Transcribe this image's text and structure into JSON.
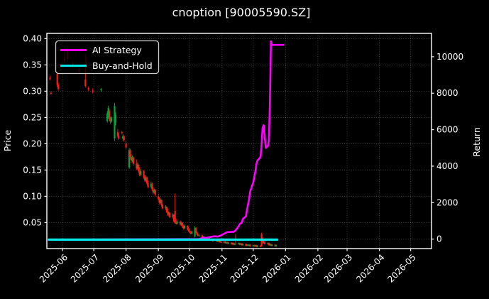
{
  "title": "cnoption [90005590.SZ]",
  "colors": {
    "background": "#000000",
    "text": "#ffffff",
    "ai_strategy": "#ff00ff",
    "buy_and_hold": "#00e6e6",
    "candle_up": "#00a839",
    "candle_down": "#ff1a1a",
    "grid": "#8a8a8a"
  },
  "legend": {
    "items": [
      {
        "label": "AI Strategy",
        "color": "#ff00ff"
      },
      {
        "label": "Buy-and-Hold",
        "color": "#00e6e6"
      }
    ]
  },
  "axes": {
    "price": {
      "label": "Price",
      "ticks": [
        "0.40",
        "0.35",
        "0.30",
        "0.25",
        "0.20",
        "0.15",
        "0.10",
        "0.05"
      ],
      "tick_values": [
        0.4,
        0.35,
        0.3,
        0.25,
        0.2,
        0.15,
        0.1,
        0.05
      ],
      "range": [
        0.0005,
        0.41
      ]
    },
    "return": {
      "label": "Return",
      "ticks": [
        "10000",
        "8000",
        "6000",
        "4000",
        "2000",
        "0"
      ],
      "tick_values": [
        10000,
        8000,
        6000,
        4000,
        2000,
        0
      ],
      "range": [
        -520,
        11280
      ]
    },
    "x": {
      "ticks": [
        {
          "label": "2025-06",
          "date": "2025-06-01"
        },
        {
          "label": "2025-07",
          "date": "2025-07-01"
        },
        {
          "label": "2025-08",
          "date": "2025-08-01"
        },
        {
          "label": "2025-09",
          "date": "2025-09-01"
        },
        {
          "label": "2025-10",
          "date": "2025-10-01"
        },
        {
          "label": "2025-11",
          "date": "2025-11-01"
        },
        {
          "label": "2025-12",
          "date": "2025-12-01"
        },
        {
          "label": "2026-01",
          "date": "2026-01-01"
        },
        {
          "label": "2026-02",
          "date": "2026-02-01"
        },
        {
          "label": "2026-03",
          "date": "2026-03-01"
        },
        {
          "label": "2026-04",
          "date": "2026-04-01"
        },
        {
          "label": "2026-05",
          "date": "2026-05-01"
        }
      ],
      "range": [
        "2025-05-17",
        "2026-05-21"
      ]
    }
  },
  "chart_data": {
    "type": "candlestick+line",
    "title": "cnoption [90005590.SZ]",
    "xlabel": "",
    "ylabel_left": "Price",
    "ylabel_right": "Return",
    "grid": true,
    "legend_position": "upper left",
    "up_color": "#00a839",
    "down_color": "#ff1a1a",
    "price_candles_ohlc": [
      [
        "2025-05-20",
        0.325,
        0.329,
        0.321,
        0.323
      ],
      [
        "2025-05-21",
        0.297,
        0.3,
        0.293,
        0.295
      ],
      [
        "2025-05-27",
        0.333,
        0.338,
        0.308,
        0.312
      ],
      [
        "2025-05-28",
        0.312,
        0.316,
        0.301,
        0.304
      ],
      [
        "2025-06-03",
        0.362,
        0.386,
        0.354,
        0.358
      ],
      [
        "2025-06-06",
        0.376,
        0.383,
        0.356,
        0.361
      ],
      [
        "2025-06-11",
        0.352,
        0.356,
        0.344,
        0.347
      ],
      [
        "2025-06-17",
        0.341,
        0.344,
        0.335,
        0.338
      ],
      [
        "2025-06-23",
        0.322,
        0.37,
        0.307,
        0.31
      ],
      [
        "2025-06-26",
        0.306,
        0.309,
        0.3,
        0.303
      ],
      [
        "2025-06-30",
        0.301,
        0.305,
        0.296,
        0.299
      ],
      [
        "2025-07-08",
        0.302,
        0.306,
        0.299,
        0.304
      ],
      [
        "2025-07-14",
        0.243,
        0.262,
        0.24,
        0.258
      ],
      [
        "2025-07-15",
        0.252,
        0.272,
        0.248,
        0.268
      ],
      [
        "2025-07-16",
        0.262,
        0.266,
        0.243,
        0.247
      ],
      [
        "2025-07-17",
        0.247,
        0.252,
        0.238,
        0.242
      ],
      [
        "2025-07-18",
        0.242,
        0.252,
        0.24,
        0.25
      ],
      [
        "2025-07-21",
        0.21,
        0.278,
        0.205,
        0.272
      ],
      [
        "2025-07-22",
        0.24,
        0.26,
        0.235,
        0.255
      ],
      [
        "2025-07-24",
        0.222,
        0.228,
        0.212,
        0.215
      ],
      [
        "2025-07-25",
        0.215,
        0.22,
        0.207,
        0.21
      ],
      [
        "2025-07-28",
        0.222,
        0.225,
        0.218,
        0.22
      ],
      [
        "2025-07-29",
        0.21,
        0.218,
        0.206,
        0.214
      ],
      [
        "2025-07-30",
        0.214,
        0.216,
        0.204,
        0.207
      ],
      [
        "2025-08-01",
        0.2,
        0.205,
        0.19,
        0.193
      ],
      [
        "2025-08-04",
        0.155,
        0.192,
        0.152,
        0.188
      ],
      [
        "2025-08-05",
        0.188,
        0.19,
        0.17,
        0.175
      ],
      [
        "2025-08-06",
        0.175,
        0.18,
        0.163,
        0.168
      ],
      [
        "2025-08-07",
        0.168,
        0.178,
        0.165,
        0.174
      ],
      [
        "2025-08-08",
        0.174,
        0.176,
        0.158,
        0.162
      ],
      [
        "2025-08-11",
        0.162,
        0.17,
        0.15,
        0.153
      ],
      [
        "2025-08-12",
        0.153,
        0.165,
        0.15,
        0.16
      ],
      [
        "2025-08-13",
        0.16,
        0.162,
        0.145,
        0.148
      ],
      [
        "2025-08-14",
        0.148,
        0.155,
        0.138,
        0.141
      ],
      [
        "2025-08-15",
        0.141,
        0.152,
        0.138,
        0.148
      ],
      [
        "2025-08-18",
        0.148,
        0.15,
        0.133,
        0.136
      ],
      [
        "2025-08-19",
        0.136,
        0.14,
        0.127,
        0.13
      ],
      [
        "2025-08-20",
        0.13,
        0.14,
        0.128,
        0.136
      ],
      [
        "2025-08-21",
        0.136,
        0.138,
        0.122,
        0.125
      ],
      [
        "2025-08-22",
        0.125,
        0.13,
        0.115,
        0.118
      ],
      [
        "2025-08-25",
        0.118,
        0.128,
        0.115,
        0.124
      ],
      [
        "2025-08-26",
        0.124,
        0.126,
        0.11,
        0.113
      ],
      [
        "2025-08-27",
        0.113,
        0.118,
        0.104,
        0.107
      ],
      [
        "2025-08-28",
        0.107,
        0.115,
        0.105,
        0.112
      ],
      [
        "2025-08-29",
        0.112,
        0.114,
        0.1,
        0.103
      ],
      [
        "2025-09-01",
        0.1,
        0.105,
        0.092,
        0.095
      ],
      [
        "2025-09-02",
        0.095,
        0.098,
        0.085,
        0.088
      ],
      [
        "2025-09-03",
        0.088,
        0.096,
        0.086,
        0.093
      ],
      [
        "2025-09-04",
        0.093,
        0.094,
        0.08,
        0.083
      ],
      [
        "2025-09-05",
        0.083,
        0.086,
        0.075,
        0.077
      ],
      [
        "2025-09-08",
        0.077,
        0.083,
        0.074,
        0.08
      ],
      [
        "2025-09-09",
        0.08,
        0.081,
        0.068,
        0.07
      ],
      [
        "2025-09-10",
        0.07,
        0.077,
        0.063,
        0.065
      ],
      [
        "2025-09-11",
        0.065,
        0.072,
        0.062,
        0.069
      ],
      [
        "2025-09-12",
        0.069,
        0.07,
        0.058,
        0.06
      ],
      [
        "2025-09-15",
        0.06,
        0.068,
        0.057,
        0.065
      ],
      [
        "2025-09-16",
        0.065,
        0.066,
        0.05,
        0.052
      ],
      [
        "2025-09-17",
        0.072,
        0.105,
        0.048,
        0.05
      ],
      [
        "2025-09-18",
        0.052,
        0.058,
        0.046,
        0.048
      ],
      [
        "2025-09-19",
        0.048,
        0.055,
        0.046,
        0.052
      ],
      [
        "2025-09-22",
        0.052,
        0.054,
        0.044,
        0.046
      ],
      [
        "2025-09-23",
        0.046,
        0.052,
        0.044,
        0.05
      ],
      [
        "2025-09-24",
        0.05,
        0.051,
        0.04,
        0.042
      ],
      [
        "2025-09-25",
        0.042,
        0.046,
        0.037,
        0.039
      ],
      [
        "2025-09-26",
        0.039,
        0.047,
        0.037,
        0.044
      ],
      [
        "2025-09-29",
        0.044,
        0.045,
        0.035,
        0.037
      ],
      [
        "2025-09-30",
        0.037,
        0.042,
        0.032,
        0.034
      ],
      [
        "2025-10-01",
        0.034,
        0.04,
        0.03,
        0.031
      ],
      [
        "2025-10-02",
        0.031,
        0.034,
        0.028,
        0.029
      ],
      [
        "2025-10-03",
        0.029,
        0.035,
        0.028,
        0.033
      ],
      [
        "2025-10-06",
        0.024,
        0.043,
        0.022,
        0.04
      ],
      [
        "2025-10-07",
        0.04,
        0.041,
        0.03,
        0.032
      ],
      [
        "2025-10-08",
        0.032,
        0.034,
        0.026,
        0.027
      ],
      [
        "2025-10-09",
        0.027,
        0.03,
        0.024,
        0.025
      ],
      [
        "2025-10-10",
        0.025,
        0.028,
        0.023,
        0.026
      ],
      [
        "2025-10-13",
        0.026,
        0.027,
        0.021,
        0.022
      ],
      [
        "2025-10-14",
        0.022,
        0.025,
        0.02,
        0.023
      ],
      [
        "2025-10-15",
        0.023,
        0.024,
        0.019,
        0.02
      ],
      [
        "2025-10-16",
        0.02,
        0.022,
        0.017,
        0.018
      ],
      [
        "2025-10-17",
        0.018,
        0.021,
        0.017,
        0.02
      ],
      [
        "2025-10-20",
        0.02,
        0.021,
        0.016,
        0.017
      ],
      [
        "2025-10-21",
        0.017,
        0.02,
        0.016,
        0.019
      ],
      [
        "2025-10-22",
        0.019,
        0.02,
        0.015,
        0.016
      ],
      [
        "2025-10-23",
        0.016,
        0.018,
        0.014,
        0.015
      ],
      [
        "2025-10-24",
        0.015,
        0.018,
        0.014,
        0.017
      ],
      [
        "2025-10-27",
        0.017,
        0.018,
        0.013,
        0.014
      ],
      [
        "2025-10-28",
        0.014,
        0.017,
        0.013,
        0.016
      ],
      [
        "2025-10-29",
        0.016,
        0.017,
        0.012,
        0.013
      ],
      [
        "2025-10-30",
        0.013,
        0.016,
        0.012,
        0.015
      ],
      [
        "2025-10-31",
        0.015,
        0.016,
        0.011,
        0.012
      ],
      [
        "2025-11-03",
        0.012,
        0.015,
        0.011,
        0.014
      ],
      [
        "2025-11-04",
        0.014,
        0.015,
        0.01,
        0.011
      ],
      [
        "2025-11-05",
        0.011,
        0.014,
        0.01,
        0.013
      ],
      [
        "2025-11-06",
        0.013,
        0.014,
        0.009,
        0.01
      ],
      [
        "2025-11-07",
        0.01,
        0.013,
        0.009,
        0.012
      ],
      [
        "2025-11-10",
        0.012,
        0.013,
        0.008,
        0.009
      ],
      [
        "2025-11-11",
        0.009,
        0.012,
        0.008,
        0.011
      ],
      [
        "2025-11-12",
        0.011,
        0.012,
        0.007,
        0.008
      ],
      [
        "2025-11-13",
        0.008,
        0.011,
        0.007,
        0.01
      ],
      [
        "2025-11-14",
        0.01,
        0.028,
        0.007,
        0.009
      ],
      [
        "2025-11-17",
        0.009,
        0.012,
        0.008,
        0.011
      ],
      [
        "2025-11-18",
        0.011,
        0.012,
        0.007,
        0.008
      ],
      [
        "2025-11-19",
        0.008,
        0.011,
        0.007,
        0.01
      ],
      [
        "2025-11-20",
        0.01,
        0.011,
        0.006,
        0.007
      ],
      [
        "2025-11-21",
        0.007,
        0.01,
        0.006,
        0.009
      ],
      [
        "2025-11-24",
        0.009,
        0.01,
        0.005,
        0.006
      ],
      [
        "2025-11-25",
        0.006,
        0.009,
        0.005,
        0.008
      ],
      [
        "2025-11-26",
        0.008,
        0.009,
        0.005,
        0.006
      ],
      [
        "2025-11-27",
        0.006,
        0.009,
        0.005,
        0.008
      ],
      [
        "2025-11-28",
        0.008,
        0.009,
        0.004,
        0.005
      ],
      [
        "2025-12-01",
        0.005,
        0.008,
        0.004,
        0.007
      ],
      [
        "2025-12-02",
        0.007,
        0.008,
        0.004,
        0.005
      ],
      [
        "2025-12-03",
        0.005,
        0.008,
        0.004,
        0.007
      ],
      [
        "2025-12-04",
        0.007,
        0.008,
        0.003,
        0.004
      ],
      [
        "2025-12-05",
        0.004,
        0.007,
        0.003,
        0.006
      ],
      [
        "2025-12-08",
        0.006,
        0.007,
        0.003,
        0.004
      ],
      [
        "2025-12-09",
        0.028,
        0.031,
        0.004,
        0.006
      ],
      [
        "2025-12-10",
        0.02,
        0.022,
        0.01,
        0.012
      ],
      [
        "2025-12-11",
        0.012,
        0.016,
        0.01,
        0.014
      ],
      [
        "2025-12-12",
        0.014,
        0.015,
        0.008,
        0.009
      ],
      [
        "2025-12-15",
        0.009,
        0.012,
        0.008,
        0.011
      ],
      [
        "2025-12-16",
        0.011,
        0.012,
        0.006,
        0.007
      ],
      [
        "2025-12-17",
        0.007,
        0.01,
        0.006,
        0.009
      ],
      [
        "2025-12-18",
        0.009,
        0.01,
        0.005,
        0.006
      ],
      [
        "2025-12-19",
        0.006,
        0.009,
        0.005,
        0.008
      ],
      [
        "2025-12-22",
        0.008,
        0.009,
        0.004,
        0.005
      ],
      [
        "2025-12-23",
        0.005,
        0.008,
        0.004,
        0.007
      ]
    ],
    "series": [
      {
        "name": "AI Strategy",
        "axis": "return",
        "color": "#ff00ff",
        "points": [
          [
            "2025-05-19",
            -30
          ],
          [
            "2025-10-10",
            0
          ],
          [
            "2025-10-14",
            80
          ],
          [
            "2025-10-17",
            60
          ],
          [
            "2025-10-21",
            120
          ],
          [
            "2025-10-24",
            150
          ],
          [
            "2025-10-28",
            140
          ],
          [
            "2025-10-31",
            200
          ],
          [
            "2025-11-04",
            320
          ],
          [
            "2025-11-06",
            380
          ],
          [
            "2025-11-10",
            400
          ],
          [
            "2025-11-12",
            390
          ],
          [
            "2025-11-14",
            480
          ],
          [
            "2025-11-17",
            700
          ],
          [
            "2025-11-18",
            820
          ],
          [
            "2025-11-20",
            900
          ],
          [
            "2025-11-21",
            1100
          ],
          [
            "2025-11-24",
            1250
          ],
          [
            "2025-11-25",
            1600
          ],
          [
            "2025-11-26",
            1900
          ],
          [
            "2025-11-27",
            2200
          ],
          [
            "2025-11-28",
            2600
          ],
          [
            "2025-12-01",
            3100
          ],
          [
            "2025-12-02",
            3400
          ],
          [
            "2025-12-03",
            3700
          ],
          [
            "2025-12-04",
            4100
          ],
          [
            "2025-12-05",
            4300
          ],
          [
            "2025-12-08",
            4500
          ],
          [
            "2025-12-09",
            5200
          ],
          [
            "2025-12-10",
            6100
          ],
          [
            "2025-12-11",
            6250
          ],
          [
            "2025-12-12",
            5600
          ],
          [
            "2025-12-13",
            5000
          ],
          [
            "2025-12-15",
            5100
          ],
          [
            "2025-12-16",
            5400
          ],
          [
            "2025-12-17",
            7500
          ],
          [
            "2025-12-18",
            10850
          ],
          [
            "2025-12-19",
            10650
          ],
          [
            "2025-12-30",
            10650
          ]
        ]
      },
      {
        "name": "Buy-and-Hold",
        "axis": "return",
        "color": "#00e6e6",
        "points": [
          [
            "2025-05-19",
            -30
          ],
          [
            "2025-12-24",
            -30
          ]
        ]
      }
    ]
  }
}
